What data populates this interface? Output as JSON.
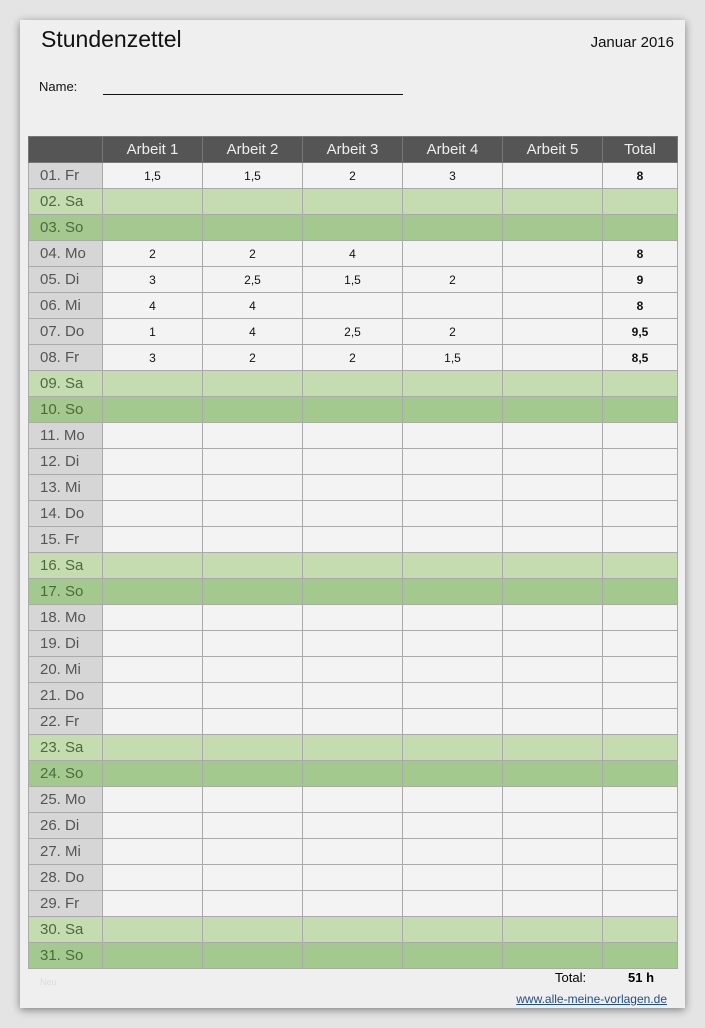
{
  "title": "Stundenzettel",
  "month": "Januar 2016",
  "name_label": "Name:",
  "columns": [
    "",
    "Arbeit 1",
    "Arbeit 2",
    "Arbeit 3",
    "Arbeit 4",
    "Arbeit 5",
    "Total"
  ],
  "rows": [
    [
      "01. Fr",
      "1,5",
      "1,5",
      "2",
      "3",
      "",
      "8"
    ],
    [
      "02. Sa",
      "",
      "",
      "",
      "",
      "",
      ""
    ],
    [
      "03. So",
      "",
      "",
      "",
      "",
      "",
      ""
    ],
    [
      "04. Mo",
      "2",
      "2",
      "4",
      "",
      "",
      "8"
    ],
    [
      "05. Di",
      "3",
      "2,5",
      "1,5",
      "2",
      "",
      "9"
    ],
    [
      "06. Mi",
      "4",
      "4",
      "",
      "",
      "",
      "8"
    ],
    [
      "07. Do",
      "1",
      "4",
      "2,5",
      "2",
      "",
      "9,5"
    ],
    [
      "08. Fr",
      "3",
      "2",
      "2",
      "1,5",
      "",
      "8,5"
    ],
    [
      "09. Sa",
      "",
      "",
      "",
      "",
      "",
      ""
    ],
    [
      "10. So",
      "",
      "",
      "",
      "",
      "",
      ""
    ],
    [
      "11. Mo",
      "",
      "",
      "",
      "",
      "",
      ""
    ],
    [
      "12. Di",
      "",
      "",
      "",
      "",
      "",
      ""
    ],
    [
      "13. Mi",
      "",
      "",
      "",
      "",
      "",
      ""
    ],
    [
      "14. Do",
      "",
      "",
      "",
      "",
      "",
      ""
    ],
    [
      "15. Fr",
      "",
      "",
      "",
      "",
      "",
      ""
    ],
    [
      "16. Sa",
      "",
      "",
      "",
      "",
      "",
      ""
    ],
    [
      "17. So",
      "",
      "",
      "",
      "",
      "",
      ""
    ],
    [
      "18. Mo",
      "",
      "",
      "",
      "",
      "",
      ""
    ],
    [
      "19. Di",
      "",
      "",
      "",
      "",
      "",
      ""
    ],
    [
      "20. Mi",
      "",
      "",
      "",
      "",
      "",
      ""
    ],
    [
      "21. Do",
      "",
      "",
      "",
      "",
      "",
      ""
    ],
    [
      "22. Fr",
      "",
      "",
      "",
      "",
      "",
      ""
    ],
    [
      "23. Sa",
      "",
      "",
      "",
      "",
      "",
      ""
    ],
    [
      "24. So",
      "",
      "",
      "",
      "",
      "",
      ""
    ],
    [
      "25. Mo",
      "",
      "",
      "",
      "",
      "",
      ""
    ],
    [
      "26. Di",
      "",
      "",
      "",
      "",
      "",
      ""
    ],
    [
      "27. Mi",
      "",
      "",
      "",
      "",
      "",
      ""
    ],
    [
      "28. Do",
      "",
      "",
      "",
      "",
      "",
      ""
    ],
    [
      "29. Fr",
      "",
      "",
      "",
      "",
      "",
      ""
    ],
    [
      "30. Sa",
      "",
      "",
      "",
      "",
      "",
      ""
    ],
    [
      "31. So",
      "",
      "",
      "",
      "",
      "",
      ""
    ]
  ],
  "total_label": "Total:",
  "total_value": "51 h",
  "faint_note": "Neu",
  "link": "www.alle-meine-vorlagen.de",
  "colors": {
    "header": "#555555",
    "saturday": "#c4dcb0",
    "sunday": "#a4c98e",
    "day_cell": "#d6d6d6"
  }
}
